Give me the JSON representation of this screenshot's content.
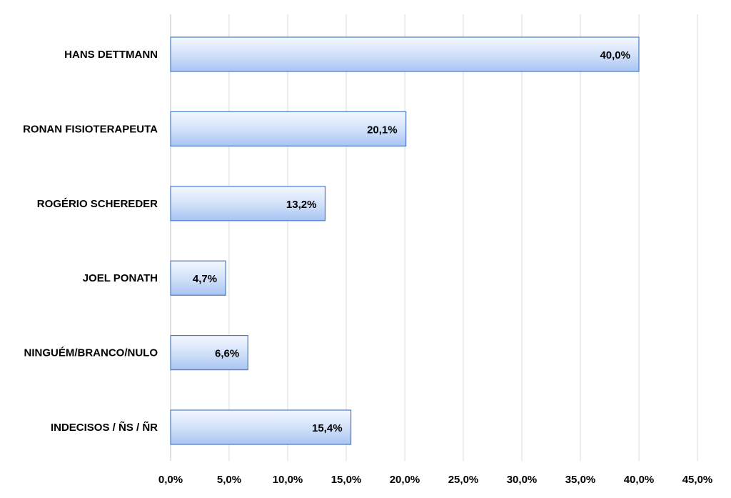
{
  "chart_data": {
    "type": "bar",
    "orientation": "horizontal",
    "categories": [
      "HANS DETTMANN",
      "RONAN FISIOTERAPEUTA",
      "ROGÉRIO SCHEREDER",
      "JOEL PONATH",
      "NINGUÉM/BRANCO/NULO",
      "INDECISOS / ÑS / ÑR"
    ],
    "values": [
      40.0,
      20.1,
      13.2,
      4.7,
      6.6,
      15.4
    ],
    "data_labels": [
      "40,0%",
      "20,1%",
      "13,2%",
      "4,7%",
      "6,6%",
      "15,4%"
    ],
    "x_ticks": [
      0,
      5,
      10,
      15,
      20,
      25,
      30,
      35,
      40,
      45
    ],
    "x_tick_labels": [
      "0,0%",
      "5,0%",
      "10,0%",
      "15,0%",
      "20,0%",
      "25,0%",
      "30,0%",
      "35,0%",
      "40,0%",
      "45,0%"
    ],
    "xlim": [
      0,
      45
    ],
    "title": "",
    "xlabel": "",
    "ylabel": "",
    "grid": true,
    "legend": "none",
    "colors": {
      "bar_fill_light": "#f2f6ff",
      "bar_fill_dark": "#a8c4f2",
      "bar_stroke": "#4a7bc8",
      "grid": "#d9d9d9"
    }
  }
}
